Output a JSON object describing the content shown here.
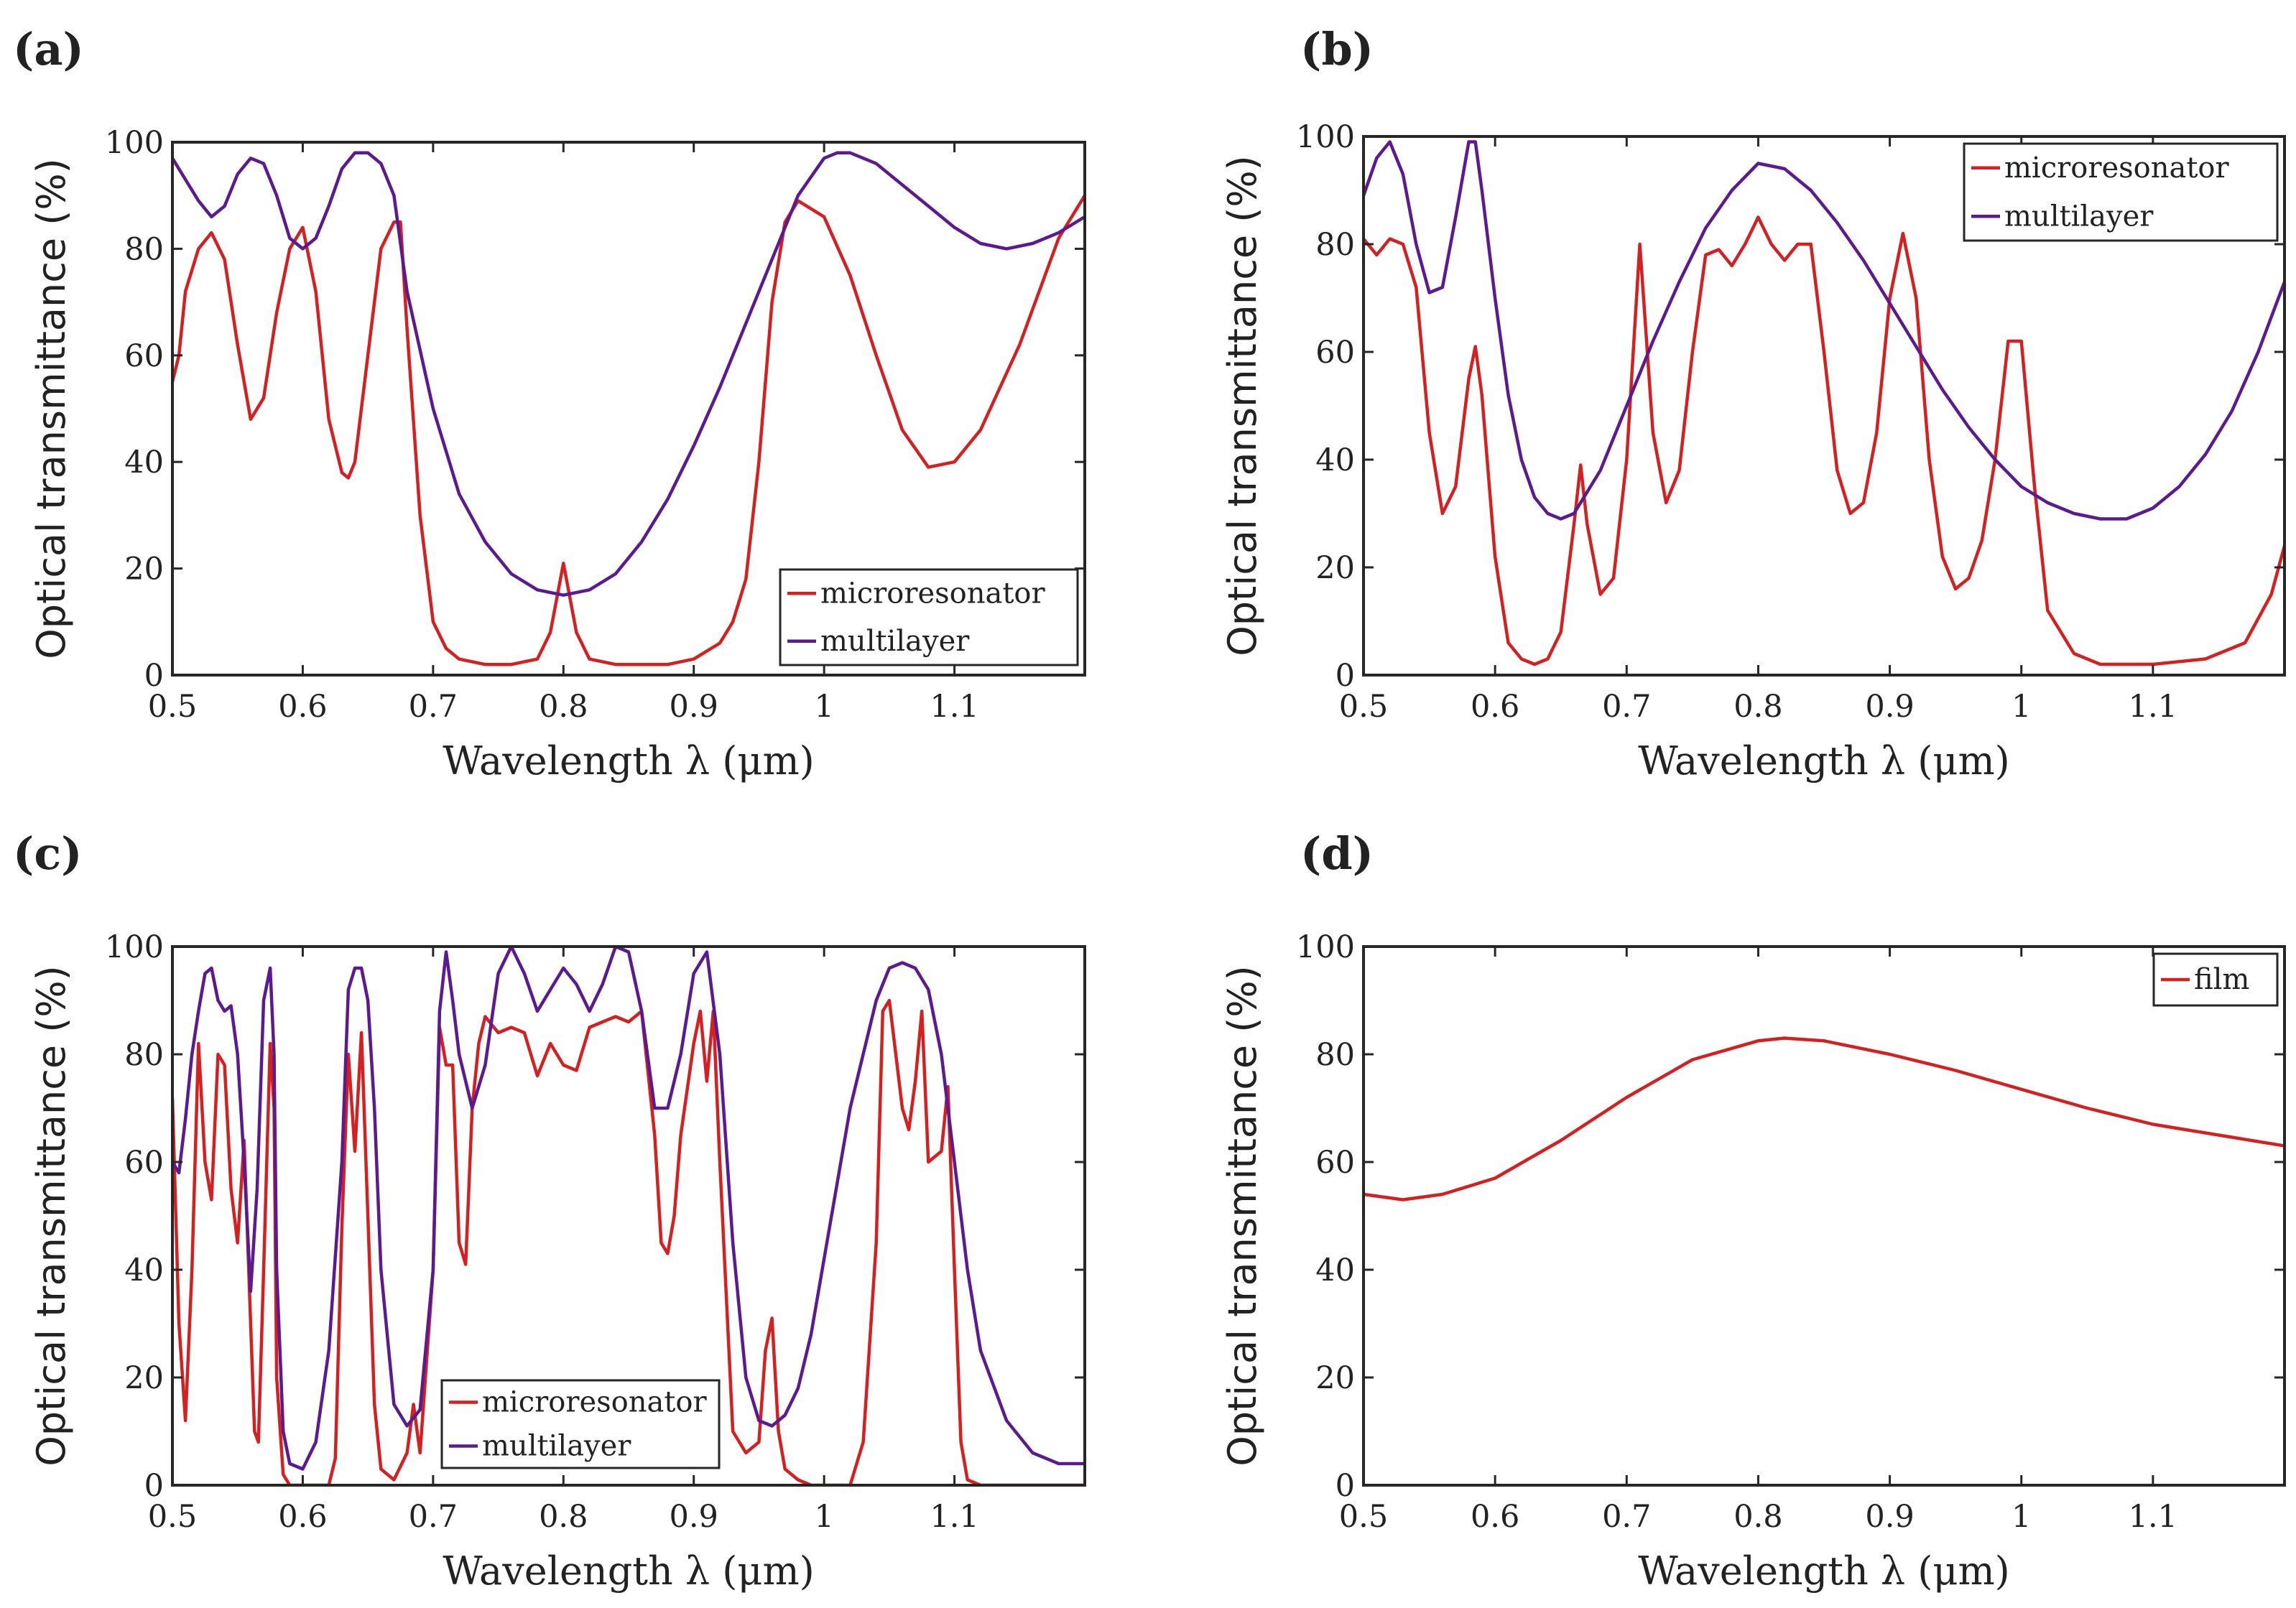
{
  "chart_data": [
    {
      "panel": "(a)",
      "type": "line",
      "xlabel": "Wavelength λ (μm)",
      "ylabel": "Optical transmittance (%)",
      "xlim": [
        0.5,
        1.2
      ],
      "ylim": [
        0,
        100
      ],
      "xticks": [
        "0.5",
        "0.6",
        "0.7",
        "0.8",
        "0.9",
        "1",
        "1.1"
      ],
      "yticks": [
        "0",
        "20",
        "40",
        "60",
        "80",
        "100"
      ],
      "legend_position": "bottom-right",
      "series": [
        {
          "name": "microresonator",
          "color": "#d42020",
          "x": [
            0.5,
            0.505,
            0.51,
            0.52,
            0.53,
            0.54,
            0.55,
            0.56,
            0.57,
            0.58,
            0.59,
            0.6,
            0.61,
            0.62,
            0.63,
            0.635,
            0.64,
            0.65,
            0.66,
            0.67,
            0.675,
            0.68,
            0.69,
            0.7,
            0.71,
            0.72,
            0.74,
            0.76,
            0.78,
            0.79,
            0.8,
            0.81,
            0.82,
            0.84,
            0.86,
            0.88,
            0.9,
            0.92,
            0.93,
            0.94,
            0.95,
            0.96,
            0.97,
            0.98,
            1.0,
            1.02,
            1.04,
            1.06,
            1.08,
            1.1,
            1.12,
            1.15,
            1.18,
            1.2
          ],
          "y": [
            55,
            60,
            72,
            80,
            83,
            78,
            62,
            48,
            52,
            68,
            80,
            84,
            72,
            48,
            38,
            37,
            40,
            60,
            80,
            85,
            85,
            65,
            30,
            10,
            5,
            3,
            2,
            2,
            3,
            8,
            21,
            8,
            3,
            2,
            2,
            2,
            3,
            6,
            10,
            18,
            40,
            70,
            85,
            89,
            86,
            75,
            60,
            46,
            39,
            40,
            46,
            62,
            82,
            90
          ]
        },
        {
          "name": "multilayer",
          "color": "#5b1a8f",
          "x": [
            0.5,
            0.51,
            0.52,
            0.53,
            0.54,
            0.55,
            0.56,
            0.57,
            0.58,
            0.59,
            0.6,
            0.61,
            0.62,
            0.63,
            0.64,
            0.65,
            0.66,
            0.67,
            0.68,
            0.7,
            0.72,
            0.74,
            0.76,
            0.78,
            0.8,
            0.82,
            0.84,
            0.86,
            0.88,
            0.9,
            0.92,
            0.94,
            0.96,
            0.98,
            1.0,
            1.01,
            1.02,
            1.04,
            1.06,
            1.08,
            1.1,
            1.12,
            1.14,
            1.16,
            1.18,
            1.2
          ],
          "y": [
            97,
            93,
            89,
            86,
            88,
            94,
            97,
            96,
            90,
            82,
            80,
            82,
            88,
            95,
            98,
            98,
            96,
            90,
            72,
            50,
            34,
            25,
            19,
            16,
            15,
            16,
            19,
            25,
            33,
            43,
            54,
            66,
            78,
            90,
            97,
            98,
            98,
            96,
            92,
            88,
            84,
            81,
            80,
            81,
            83,
            86
          ]
        }
      ]
    },
    {
      "panel": "(b)",
      "type": "line",
      "xlabel": "Wavelength λ (μm)",
      "ylabel": "Optical transmittance (%)",
      "xlim": [
        0.5,
        1.2
      ],
      "ylim": [
        0,
        100
      ],
      "xticks": [
        "0.5",
        "0.6",
        "0.7",
        "0.8",
        "0.9",
        "1",
        "1.1"
      ],
      "yticks": [
        "0",
        "20",
        "40",
        "60",
        "80",
        "100"
      ],
      "legend_position": "top-right",
      "series": [
        {
          "name": "microresonator",
          "color": "#d42020",
          "x": [
            0.5,
            0.51,
            0.52,
            0.53,
            0.54,
            0.55,
            0.56,
            0.57,
            0.58,
            0.585,
            0.59,
            0.6,
            0.61,
            0.62,
            0.63,
            0.64,
            0.65,
            0.66,
            0.665,
            0.67,
            0.68,
            0.69,
            0.7,
            0.71,
            0.72,
            0.73,
            0.74,
            0.75,
            0.76,
            0.77,
            0.78,
            0.79,
            0.8,
            0.81,
            0.82,
            0.83,
            0.84,
            0.85,
            0.86,
            0.87,
            0.88,
            0.89,
            0.9,
            0.91,
            0.92,
            0.93,
            0.94,
            0.95,
            0.96,
            0.97,
            0.98,
            0.99,
            1.0,
            1.01,
            1.02,
            1.04,
            1.06,
            1.1,
            1.14,
            1.17,
            1.19,
            1.2
          ],
          "y": [
            81,
            78,
            81,
            80,
            72,
            45,
            30,
            35,
            55,
            61,
            52,
            22,
            6,
            3,
            2,
            3,
            8,
            28,
            39,
            28,
            15,
            18,
            40,
            80,
            45,
            32,
            38,
            60,
            78,
            79,
            76,
            80,
            85,
            80,
            77,
            80,
            80,
            60,
            38,
            30,
            32,
            45,
            70,
            82,
            70,
            40,
            22,
            16,
            18,
            25,
            40,
            62,
            62,
            35,
            12,
            4,
            2,
            2,
            3,
            6,
            15,
            24
          ]
        },
        {
          "name": "multilayer",
          "color": "#5b1a8f",
          "x": [
            0.5,
            0.51,
            0.52,
            0.53,
            0.54,
            0.55,
            0.56,
            0.57,
            0.58,
            0.585,
            0.59,
            0.6,
            0.61,
            0.62,
            0.63,
            0.64,
            0.65,
            0.66,
            0.68,
            0.7,
            0.72,
            0.74,
            0.76,
            0.78,
            0.8,
            0.82,
            0.84,
            0.86,
            0.88,
            0.9,
            0.92,
            0.94,
            0.96,
            0.98,
            1.0,
            1.02,
            1.04,
            1.06,
            1.08,
            1.1,
            1.12,
            1.14,
            1.16,
            1.18,
            1.2
          ],
          "y": [
            89,
            96,
            99,
            93,
            80,
            71,
            72,
            85,
            99,
            99,
            90,
            70,
            52,
            40,
            33,
            30,
            29,
            30,
            38,
            50,
            62,
            73,
            83,
            90,
            95,
            94,
            90,
            84,
            77,
            69,
            61,
            53,
            46,
            40,
            35,
            32,
            30,
            29,
            29,
            31,
            35,
            41,
            49,
            60,
            73
          ]
        }
      ]
    },
    {
      "panel": "(c)",
      "type": "line",
      "xlabel": "Wavelength λ (μm)",
      "ylabel": "Optical transmittance (%)",
      "xlim": [
        0.5,
        1.2
      ],
      "ylim": [
        0,
        100
      ],
      "xticks": [
        "0.5",
        "0.6",
        "0.7",
        "0.8",
        "0.9",
        "1",
        "1.1"
      ],
      "yticks": [
        "0",
        "20",
        "40",
        "60",
        "80",
        "100"
      ],
      "legend_position": "bottom-center",
      "series": [
        {
          "name": "microresonator",
          "color": "#d42020",
          "x": [
            0.5,
            0.505,
            0.51,
            0.515,
            0.52,
            0.525,
            0.53,
            0.535,
            0.54,
            0.545,
            0.55,
            0.555,
            0.56,
            0.563,
            0.566,
            0.57,
            0.575,
            0.578,
            0.58,
            0.585,
            0.59,
            0.6,
            0.61,
            0.62,
            0.625,
            0.63,
            0.635,
            0.64,
            0.645,
            0.65,
            0.655,
            0.66,
            0.67,
            0.68,
            0.685,
            0.69,
            0.7,
            0.705,
            0.71,
            0.715,
            0.72,
            0.725,
            0.73,
            0.735,
            0.74,
            0.75,
            0.76,
            0.77,
            0.78,
            0.79,
            0.8,
            0.81,
            0.82,
            0.83,
            0.84,
            0.85,
            0.86,
            0.87,
            0.875,
            0.88,
            0.885,
            0.89,
            0.9,
            0.905,
            0.91,
            0.915,
            0.92,
            0.93,
            0.94,
            0.95,
            0.955,
            0.96,
            0.965,
            0.97,
            0.98,
            0.99,
            1.0,
            1.01,
            1.02,
            1.03,
            1.04,
            1.045,
            1.05,
            1.06,
            1.065,
            1.07,
            1.075,
            1.08,
            1.09,
            1.095,
            1.1,
            1.105,
            1.11,
            1.12,
            1.14,
            1.17,
            1.2
          ],
          "y": [
            72,
            30,
            12,
            40,
            82,
            60,
            53,
            80,
            78,
            55,
            45,
            64,
            30,
            10,
            8,
            40,
            82,
            70,
            20,
            2,
            0,
            0,
            0,
            0,
            5,
            48,
            80,
            62,
            84,
            50,
            15,
            3,
            1,
            6,
            15,
            6,
            40,
            85,
            78,
            78,
            45,
            41,
            70,
            82,
            87,
            84,
            85,
            84,
            76,
            82,
            78,
            77,
            85,
            86,
            87,
            86,
            88,
            65,
            45,
            43,
            50,
            65,
            82,
            88,
            75,
            88,
            60,
            10,
            6,
            8,
            25,
            31,
            10,
            3,
            1,
            0,
            0,
            0,
            0,
            8,
            45,
            88,
            90,
            70,
            66,
            75,
            88,
            60,
            62,
            74,
            40,
            8,
            1,
            0,
            0,
            0,
            0
          ]
        },
        {
          "name": "multilayer",
          "color": "#5b1a8f",
          "x": [
            0.5,
            0.505,
            0.51,
            0.515,
            0.52,
            0.525,
            0.53,
            0.535,
            0.54,
            0.545,
            0.55,
            0.555,
            0.56,
            0.565,
            0.57,
            0.575,
            0.578,
            0.58,
            0.585,
            0.59,
            0.6,
            0.61,
            0.62,
            0.63,
            0.635,
            0.64,
            0.645,
            0.65,
            0.655,
            0.66,
            0.67,
            0.68,
            0.69,
            0.7,
            0.705,
            0.71,
            0.715,
            0.72,
            0.73,
            0.74,
            0.75,
            0.76,
            0.77,
            0.78,
            0.79,
            0.8,
            0.81,
            0.82,
            0.83,
            0.84,
            0.85,
            0.86,
            0.87,
            0.88,
            0.89,
            0.9,
            0.91,
            0.92,
            0.93,
            0.94,
            0.95,
            0.96,
            0.97,
            0.98,
            0.99,
            1.0,
            1.02,
            1.04,
            1.05,
            1.06,
            1.07,
            1.08,
            1.09,
            1.1,
            1.11,
            1.12,
            1.14,
            1.16,
            1.18,
            1.2
          ],
          "y": [
            60,
            58,
            68,
            80,
            88,
            95,
            96,
            90,
            88,
            89,
            80,
            60,
            36,
            55,
            90,
            96,
            80,
            40,
            10,
            4,
            3,
            8,
            25,
            60,
            92,
            96,
            96,
            90,
            70,
            40,
            15,
            11,
            14,
            40,
            88,
            99,
            90,
            80,
            70,
            78,
            95,
            100,
            95,
            88,
            92,
            96,
            93,
            88,
            93,
            100,
            99,
            88,
            70,
            70,
            80,
            95,
            99,
            80,
            45,
            20,
            12,
            11,
            13,
            18,
            28,
            42,
            70,
            90,
            96,
            97,
            96,
            92,
            80,
            60,
            40,
            25,
            12,
            6,
            4,
            4
          ]
        }
      ]
    },
    {
      "panel": "(d)",
      "type": "line",
      "xlabel": "Wavelength λ (μm)",
      "ylabel": "Optical transmittance (%)",
      "xlim": [
        0.5,
        1.2
      ],
      "ylim": [
        0,
        100
      ],
      "xticks": [
        "0.5",
        "0.6",
        "0.7",
        "0.8",
        "0.9",
        "1",
        "1.1"
      ],
      "yticks": [
        "0",
        "20",
        "40",
        "60",
        "80",
        "100"
      ],
      "legend_position": "top-right",
      "series": [
        {
          "name": "film",
          "color": "#d42020",
          "x": [
            0.5,
            0.53,
            0.56,
            0.6,
            0.65,
            0.7,
            0.75,
            0.8,
            0.82,
            0.85,
            0.9,
            0.95,
            1.0,
            1.05,
            1.1,
            1.15,
            1.2
          ],
          "y": [
            54,
            53,
            54,
            57,
            64,
            72,
            79,
            82.5,
            83,
            82.5,
            80,
            77,
            73.5,
            70,
            67,
            65,
            63
          ]
        }
      ]
    }
  ]
}
